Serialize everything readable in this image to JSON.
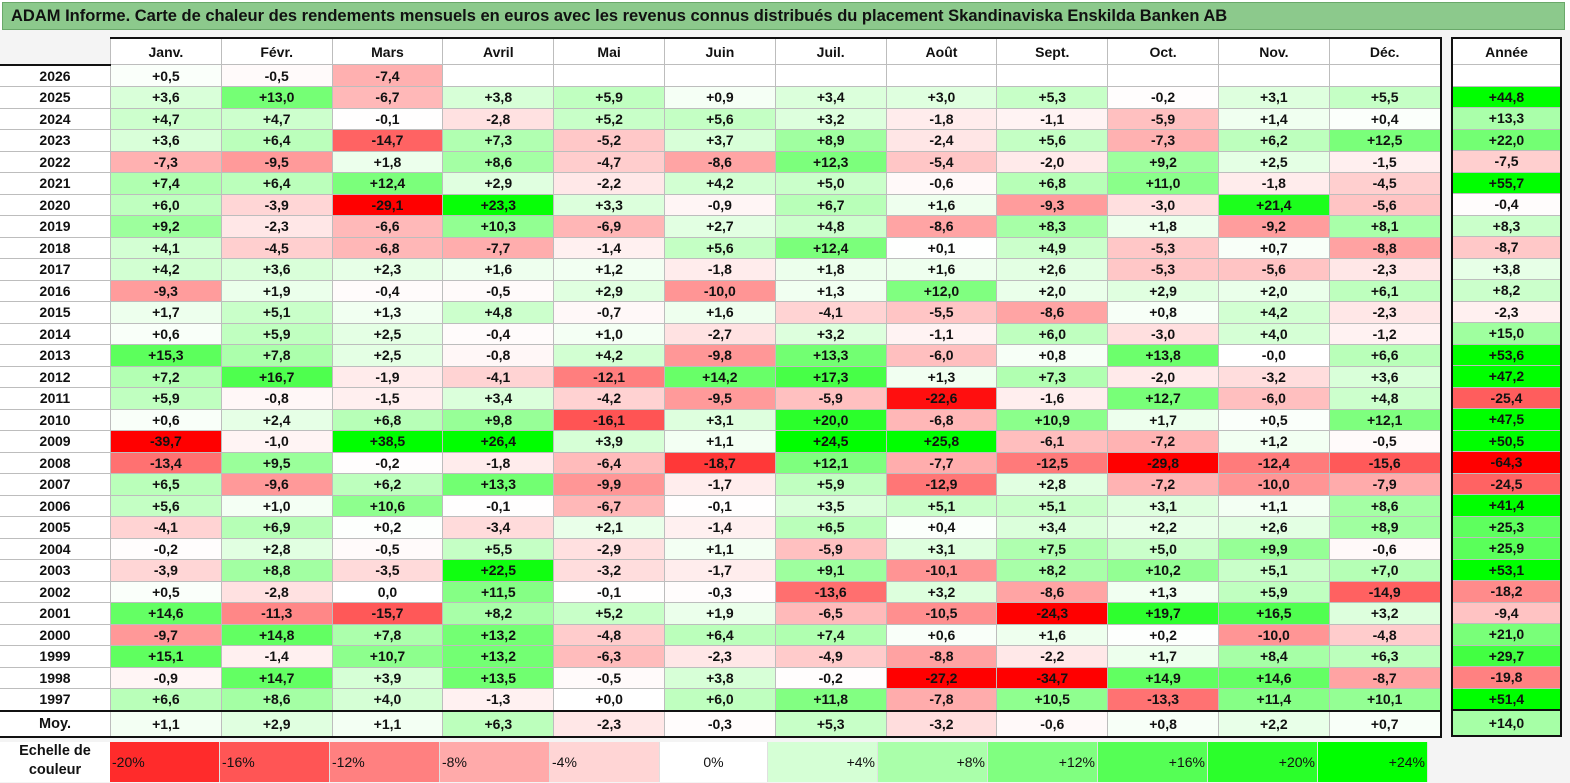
{
  "title": "ADAM Informe. Carte de chaleur des rendements mensuels en euros avec les revenus connus distribués du placement Skandinaviska Enskilda Banken AB",
  "chart_data": {
    "type": "heatmap",
    "title": "ADAM Informe. Carte de chaleur des rendements mensuels en euros avec les revenus connus distribués du placement Skandinaviska Enskilda Banken AB",
    "months": [
      "Janv.",
      "Févr.",
      "Mars",
      "Avril",
      "Mai",
      "Juin",
      "Juil.",
      "Août",
      "Sept.",
      "Oct.",
      "Nov.",
      "Déc."
    ],
    "annual_header": "Année",
    "rows": [
      {
        "year": "2026",
        "months": [
          "+0,5",
          "-0,5",
          "-7,4",
          "",
          "",
          "",
          "",
          "",
          "",
          "",
          "",
          ""
        ],
        "annual": ""
      },
      {
        "year": "2025",
        "months": [
          "+3,6",
          "+13,0",
          "-6,7",
          "+3,8",
          "+5,9",
          "+0,9",
          "+3,4",
          "+3,0",
          "+5,3",
          "-0,2",
          "+3,1",
          "+5,5"
        ],
        "annual": "+44,8"
      },
      {
        "year": "2024",
        "months": [
          "+4,7",
          "+4,7",
          "-0,1",
          "-2,8",
          "+5,2",
          "+5,6",
          "+3,2",
          "-1,8",
          "-1,1",
          "-5,9",
          "+1,4",
          "+0,4"
        ],
        "annual": "+13,3"
      },
      {
        "year": "2023",
        "months": [
          "+3,6",
          "+6,4",
          "-14,7",
          "+7,3",
          "-5,2",
          "+3,7",
          "+8,9",
          "-2,4",
          "+5,6",
          "-7,3",
          "+6,2",
          "+12,5"
        ],
        "annual": "+22,0"
      },
      {
        "year": "2022",
        "months": [
          "-7,3",
          "-9,5",
          "+1,8",
          "+8,6",
          "-4,7",
          "-8,6",
          "+12,3",
          "-5,4",
          "-2,0",
          "+9,2",
          "+2,5",
          "-1,5"
        ],
        "annual": "-7,5"
      },
      {
        "year": "2021",
        "months": [
          "+7,4",
          "+6,4",
          "+12,4",
          "+2,9",
          "-2,2",
          "+4,2",
          "+5,0",
          "-0,6",
          "+6,8",
          "+11,0",
          "-1,8",
          "-4,5"
        ],
        "annual": "+55,7"
      },
      {
        "year": "2020",
        "months": [
          "+6,0",
          "-3,9",
          "-29,1",
          "+23,3",
          "+3,3",
          "-0,9",
          "+6,7",
          "+1,6",
          "-9,3",
          "-3,0",
          "+21,4",
          "-5,6"
        ],
        "annual": "-0,4"
      },
      {
        "year": "2019",
        "months": [
          "+9,2",
          "-2,3",
          "-6,6",
          "+10,3",
          "-6,9",
          "+2,7",
          "+4,8",
          "-8,6",
          "+8,3",
          "+1,8",
          "-9,2",
          "+8,1"
        ],
        "annual": "+8,3"
      },
      {
        "year": "2018",
        "months": [
          "+4,1",
          "-4,5",
          "-6,8",
          "-7,7",
          "-1,4",
          "+5,6",
          "+12,4",
          "+0,1",
          "+4,9",
          "-5,3",
          "+0,7",
          "-8,8"
        ],
        "annual": "-8,7"
      },
      {
        "year": "2017",
        "months": [
          "+4,2",
          "+3,6",
          "+2,3",
          "+1,6",
          "+1,2",
          "-1,8",
          "+1,8",
          "+1,6",
          "+2,6",
          "-5,3",
          "-5,6",
          "-2,3"
        ],
        "annual": "+3,8"
      },
      {
        "year": "2016",
        "months": [
          "-9,3",
          "+1,9",
          "-0,4",
          "-0,5",
          "+2,9",
          "-10,0",
          "+1,3",
          "+12,0",
          "+2,0",
          "+2,9",
          "+2,0",
          "+6,1"
        ],
        "annual": "+8,2"
      },
      {
        "year": "2015",
        "months": [
          "+1,7",
          "+5,1",
          "+1,3",
          "+4,8",
          "-0,7",
          "+1,6",
          "-4,1",
          "-5,5",
          "-8,6",
          "+0,8",
          "+4,2",
          "-2,3"
        ],
        "annual": "-2,3"
      },
      {
        "year": "2014",
        "months": [
          "+0,6",
          "+5,9",
          "+2,5",
          "-0,4",
          "+1,0",
          "-2,7",
          "+3,2",
          "-1,1",
          "+6,0",
          "-3,0",
          "+4,0",
          "-1,2"
        ],
        "annual": "+15,0"
      },
      {
        "year": "2013",
        "months": [
          "+15,3",
          "+7,8",
          "+2,5",
          "-0,8",
          "+4,2",
          "-9,8",
          "+13,3",
          "-6,0",
          "+0,8",
          "+13,8",
          "-0,0",
          "+6,6"
        ],
        "annual": "+53,6"
      },
      {
        "year": "2012",
        "months": [
          "+7,2",
          "+16,7",
          "-1,9",
          "-4,1",
          "-12,1",
          "+14,2",
          "+17,3",
          "+1,3",
          "+7,3",
          "-2,0",
          "-3,2",
          "+3,6"
        ],
        "annual": "+47,2"
      },
      {
        "year": "2011",
        "months": [
          "+5,9",
          "-0,8",
          "-1,5",
          "+3,4",
          "-4,2",
          "-9,5",
          "-5,9",
          "-22,6",
          "-1,6",
          "+12,7",
          "-6,0",
          "+4,8"
        ],
        "annual": "-25,4"
      },
      {
        "year": "2010",
        "months": [
          "+0,6",
          "+2,4",
          "+6,8",
          "+9,8",
          "-16,1",
          "+3,1",
          "+20,0",
          "-6,8",
          "+10,9",
          "+1,7",
          "+0,5",
          "+12,1"
        ],
        "annual": "+47,5"
      },
      {
        "year": "2009",
        "months": [
          "-39,7",
          "-1,0",
          "+38,5",
          "+26,4",
          "+3,9",
          "+1,1",
          "+24,5",
          "+25,8",
          "-6,1",
          "-7,2",
          "+1,2",
          "-0,5"
        ],
        "annual": "+50,5"
      },
      {
        "year": "2008",
        "months": [
          "-13,4",
          "+9,5",
          "-0,2",
          "-1,8",
          "-6,4",
          "-18,7",
          "+12,1",
          "-7,7",
          "-12,5",
          "-29,8",
          "-12,4",
          "-15,6"
        ],
        "annual": "-64,3"
      },
      {
        "year": "2007",
        "months": [
          "+6,5",
          "-9,6",
          "+6,2",
          "+13,3",
          "-9,9",
          "-1,7",
          "+5,9",
          "-12,9",
          "+2,8",
          "-7,2",
          "-10,0",
          "-7,9"
        ],
        "annual": "-24,5"
      },
      {
        "year": "2006",
        "months": [
          "+5,6",
          "+1,0",
          "+10,6",
          "-0,1",
          "-6,7",
          "-0,1",
          "+3,5",
          "+5,1",
          "+5,1",
          "+3,1",
          "+1,1",
          "+8,6"
        ],
        "annual": "+41,4"
      },
      {
        "year": "2005",
        "months": [
          "-4,1",
          "+6,9",
          "+0,2",
          "-3,4",
          "+2,1",
          "-1,4",
          "+6,5",
          "+0,4",
          "+3,4",
          "+2,2",
          "+2,6",
          "+8,9"
        ],
        "annual": "+25,3"
      },
      {
        "year": "2004",
        "months": [
          "-0,2",
          "+2,8",
          "-0,5",
          "+5,5",
          "-2,9",
          "+1,1",
          "-5,9",
          "+3,1",
          "+7,5",
          "+5,0",
          "+9,9",
          "-0,6"
        ],
        "annual": "+25,9"
      },
      {
        "year": "2003",
        "months": [
          "-3,9",
          "+8,8",
          "-3,5",
          "+22,5",
          "-3,2",
          "-1,7",
          "+9,1",
          "-10,1",
          "+8,2",
          "+10,2",
          "+5,1",
          "+7,0"
        ],
        "annual": "+53,1"
      },
      {
        "year": "2002",
        "months": [
          "+0,5",
          "-2,8",
          "0,0",
          "+11,5",
          "-0,1",
          "-0,3",
          "-13,6",
          "+3,2",
          "-8,6",
          "+1,3",
          "+5,9",
          "-14,9"
        ],
        "annual": "-18,2"
      },
      {
        "year": "2001",
        "months": [
          "+14,6",
          "-11,3",
          "-15,7",
          "+8,2",
          "+5,2",
          "+1,9",
          "-6,5",
          "-10,5",
          "-24,3",
          "+19,7",
          "+16,5",
          "+3,2"
        ],
        "annual": "-9,4"
      },
      {
        "year": "2000",
        "months": [
          "-9,7",
          "+14,8",
          "+7,8",
          "+13,2",
          "-4,8",
          "+6,4",
          "+7,4",
          "+0,6",
          "+1,6",
          "+0,2",
          "-10,0",
          "-4,8"
        ],
        "annual": "+21,0"
      },
      {
        "year": "1999",
        "months": [
          "+15,1",
          "-1,4",
          "+10,7",
          "+13,2",
          "-6,3",
          "-2,3",
          "-4,9",
          "-8,8",
          "-2,2",
          "+1,7",
          "+8,4",
          "+6,3"
        ],
        "annual": "+29,7"
      },
      {
        "year": "1998",
        "months": [
          "-0,9",
          "+14,7",
          "+3,9",
          "+13,5",
          "-0,5",
          "+3,8",
          "-0,2",
          "-27,2",
          "-34,7",
          "+14,9",
          "+14,6",
          "-8,7"
        ],
        "annual": "-19,8"
      },
      {
        "year": "1997",
        "months": [
          "+6,6",
          "+8,6",
          "+4,0",
          "-1,3",
          "+0,0",
          "+6,0",
          "+11,8",
          "-7,8",
          "+10,5",
          "-13,3",
          "+11,4",
          "+10,1"
        ],
        "annual": "+51,4"
      }
    ],
    "average": {
      "label": "Moy.",
      "months": [
        "+1,1",
        "+2,9",
        "+1,1",
        "+6,3",
        "-2,3",
        "-0,3",
        "+5,3",
        "-3,2",
        "-0,6",
        "+0,8",
        "+2,2",
        "+0,7"
      ],
      "annual": "+14,0"
    },
    "scale_label": "Echelle de couleur",
    "scale": [
      {
        "label": "-20%",
        "value": -20
      },
      {
        "label": "-16%",
        "value": -16
      },
      {
        "label": "-12%",
        "value": -12
      },
      {
        "label": "-8%",
        "value": -8
      },
      {
        "label": "-4%",
        "value": -4
      },
      {
        "label": "0%",
        "value": 0
      },
      {
        "label": "+4%",
        "value": 4
      },
      {
        "label": "+8%",
        "value": 8
      },
      {
        "label": "+12%",
        "value": 12
      },
      {
        "label": "+16%",
        "value": 16
      },
      {
        "label": "+20%",
        "value": 20
      },
      {
        "label": "+24%",
        "value": 24
      }
    ],
    "colors": {
      "negative_max": "#ff0000",
      "neutral": "#ffffff",
      "positive_max": "#00ff00"
    }
  }
}
